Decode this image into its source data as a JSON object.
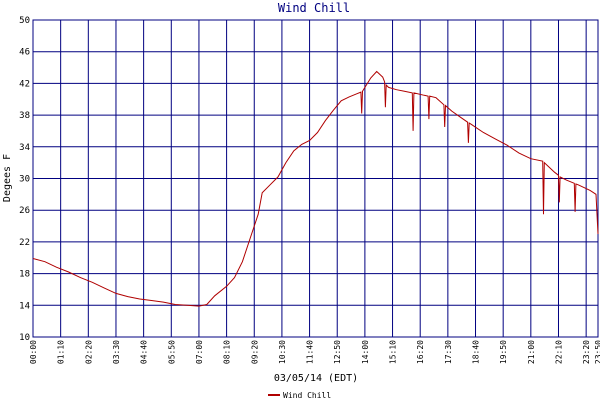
{
  "chart_data": {
    "type": "line",
    "title": "Wind Chill",
    "x_label": "03/05/14 (EDT)",
    "y_label": "Degees F",
    "xlim": [
      0,
      1430
    ],
    "ylim": [
      10,
      50
    ],
    "grid": true,
    "legend": "bottom",
    "yticks": [
      10,
      14,
      18,
      22,
      26,
      30,
      34,
      38,
      42,
      46,
      50
    ],
    "xticks": [
      {
        "value": 0,
        "label": "00:00"
      },
      {
        "value": 70,
        "label": "01:10"
      },
      {
        "value": 140,
        "label": "02:20"
      },
      {
        "value": 210,
        "label": "03:30"
      },
      {
        "value": 280,
        "label": "04:40"
      },
      {
        "value": 350,
        "label": "05:50"
      },
      {
        "value": 420,
        "label": "07:00"
      },
      {
        "value": 490,
        "label": "08:10"
      },
      {
        "value": 560,
        "label": "09:20"
      },
      {
        "value": 630,
        "label": "10:30"
      },
      {
        "value": 700,
        "label": "11:40"
      },
      {
        "value": 770,
        "label": "12:50"
      },
      {
        "value": 840,
        "label": "14:00"
      },
      {
        "value": 910,
        "label": "15:10"
      },
      {
        "value": 980,
        "label": "16:20"
      },
      {
        "value": 1050,
        "label": "17:30"
      },
      {
        "value": 1120,
        "label": "18:40"
      },
      {
        "value": 1190,
        "label": "19:50"
      },
      {
        "value": 1260,
        "label": "21:00"
      },
      {
        "value": 1330,
        "label": "22:10"
      },
      {
        "value": 1400,
        "label": "23:20"
      },
      {
        "value": 1430,
        "label": "23:50"
      }
    ],
    "x": [
      0,
      30,
      60,
      90,
      120,
      150,
      180,
      210,
      240,
      270,
      300,
      330,
      360,
      390,
      420,
      440,
      460,
      490,
      510,
      530,
      550,
      570,
      580,
      600,
      620,
      640,
      660,
      680,
      700,
      720,
      740,
      760,
      780,
      800,
      820,
      830,
      832,
      834,
      840,
      855,
      870,
      885,
      890,
      892,
      894,
      900,
      920,
      940,
      960,
      962,
      964,
      990,
      1000,
      1002,
      1004,
      1020,
      1040,
      1042,
      1044,
      1060,
      1080,
      1100,
      1102,
      1104,
      1110,
      1140,
      1170,
      1200,
      1230,
      1260,
      1290,
      1292,
      1294,
      1320,
      1330,
      1332,
      1334,
      1350,
      1370,
      1372,
      1374,
      1380,
      1410,
      1425,
      1430
    ],
    "series": [
      {
        "name": "Wind Chill",
        "color": "#b00000",
        "values": [
          19.9,
          19.5,
          18.8,
          18.2,
          17.5,
          16.9,
          16.2,
          15.5,
          15.1,
          14.8,
          14.6,
          14.4,
          14.1,
          14,
          13.9,
          14.1,
          15.2,
          16.4,
          17.5,
          19.5,
          22.5,
          25.5,
          28.2,
          29.2,
          30.2,
          32,
          33.5,
          34.3,
          34.8,
          35.8,
          37.3,
          38.6,
          39.8,
          40.3,
          40.7,
          40.9,
          38.2,
          41,
          41.5,
          42.7,
          43.5,
          42.8,
          42.2,
          39,
          41.8,
          41.5,
          41.2,
          41,
          40.8,
          36,
          40.8,
          40.5,
          40.4,
          37.5,
          40.4,
          40.2,
          39.3,
          36.5,
          39.2,
          38.5,
          37.8,
          37.1,
          34.5,
          37,
          36.8,
          35.8,
          35,
          34.2,
          33.2,
          32.5,
          32.2,
          25.5,
          32,
          30.8,
          30.4,
          27,
          30.2,
          29.8,
          29.4,
          25.8,
          29.3,
          29.2,
          28.5,
          28,
          23
        ]
      }
    ]
  }
}
